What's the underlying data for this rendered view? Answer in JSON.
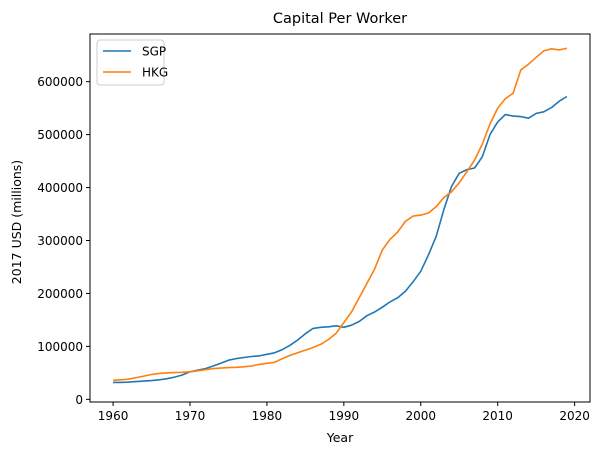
{
  "chart_data": {
    "type": "line",
    "title": "Capital Per Worker",
    "xlabel": "Year",
    "ylabel": "2017 USD (millions)",
    "xlim": [
      1957,
      2022
    ],
    "ylim": [
      -5000,
      690000
    ],
    "xticks": [
      1960,
      1970,
      1980,
      1990,
      2000,
      2010,
      2020
    ],
    "yticks": [
      0,
      100000,
      200000,
      300000,
      400000,
      500000,
      600000
    ],
    "grid": false,
    "legend": "top-left",
    "series": [
      {
        "name": "SGP",
        "color": "#1f77b4",
        "x": [
          1960,
          1961,
          1962,
          1963,
          1964,
          1965,
          1966,
          1967,
          1968,
          1969,
          1970,
          1971,
          1972,
          1973,
          1974,
          1975,
          1976,
          1977,
          1978,
          1979,
          1980,
          1981,
          1982,
          1983,
          1984,
          1985,
          1986,
          1987,
          1988,
          1989,
          1990,
          1991,
          1992,
          1993,
          1994,
          1995,
          1996,
          1997,
          1998,
          1999,
          2000,
          2001,
          2002,
          2003,
          2004,
          2005,
          2006,
          2007,
          2008,
          2009,
          2010,
          2011,
          2012,
          2013,
          2014,
          2015,
          2016,
          2017,
          2018,
          2019
        ],
        "y": [
          32000,
          32000,
          32500,
          33500,
          34500,
          35500,
          37000,
          39000,
          42000,
          46000,
          52000,
          55000,
          58000,
          63000,
          68000,
          74000,
          77000,
          79000,
          81000,
          82000,
          85000,
          88000,
          94000,
          102000,
          112000,
          124000,
          134000,
          136000,
          137000,
          139000,
          136000,
          140000,
          147000,
          158000,
          165000,
          174000,
          184000,
          192000,
          204000,
          222000,
          242000,
          273000,
          308000,
          358000,
          402000,
          427000,
          434000,
          437000,
          458000,
          500000,
          524000,
          538000,
          535000,
          534000,
          531000,
          540000,
          543000,
          551000,
          563000,
          572000
        ]
      },
      {
        "name": "HKG",
        "color": "#ff7f0e",
        "x": [
          1960,
          1961,
          1962,
          1963,
          1964,
          1965,
          1966,
          1967,
          1968,
          1969,
          1970,
          1971,
          1972,
          1973,
          1974,
          1975,
          1976,
          1977,
          1978,
          1979,
          1980,
          1981,
          1982,
          1983,
          1984,
          1985,
          1986,
          1987,
          1988,
          1989,
          1990,
          1991,
          1992,
          1993,
          1994,
          1995,
          1996,
          1997,
          1998,
          1999,
          2000,
          2001,
          2002,
          2003,
          2004,
          2005,
          2006,
          2007,
          2008,
          2009,
          2010,
          2011,
          2012,
          2013,
          2014,
          2015,
          2016,
          2017,
          2018,
          2019
        ],
        "y": [
          36000,
          37000,
          38000,
          41000,
          44000,
          47000,
          49000,
          50000,
          50500,
          51000,
          52000,
          54000,
          56000,
          58000,
          59000,
          60000,
          60500,
          61500,
          63000,
          66000,
          68000,
          70000,
          77000,
          83000,
          88000,
          93000,
          98000,
          104000,
          113000,
          125000,
          145000,
          165000,
          192000,
          219000,
          246000,
          282000,
          302000,
          316000,
          336000,
          346000,
          348000,
          352000,
          364000,
          381000,
          392000,
          409000,
          430000,
          452000,
          482000,
          520000,
          550000,
          568000,
          578000,
          622000,
          633000,
          646000,
          658000,
          662000,
          660000,
          663000
        ]
      }
    ]
  }
}
